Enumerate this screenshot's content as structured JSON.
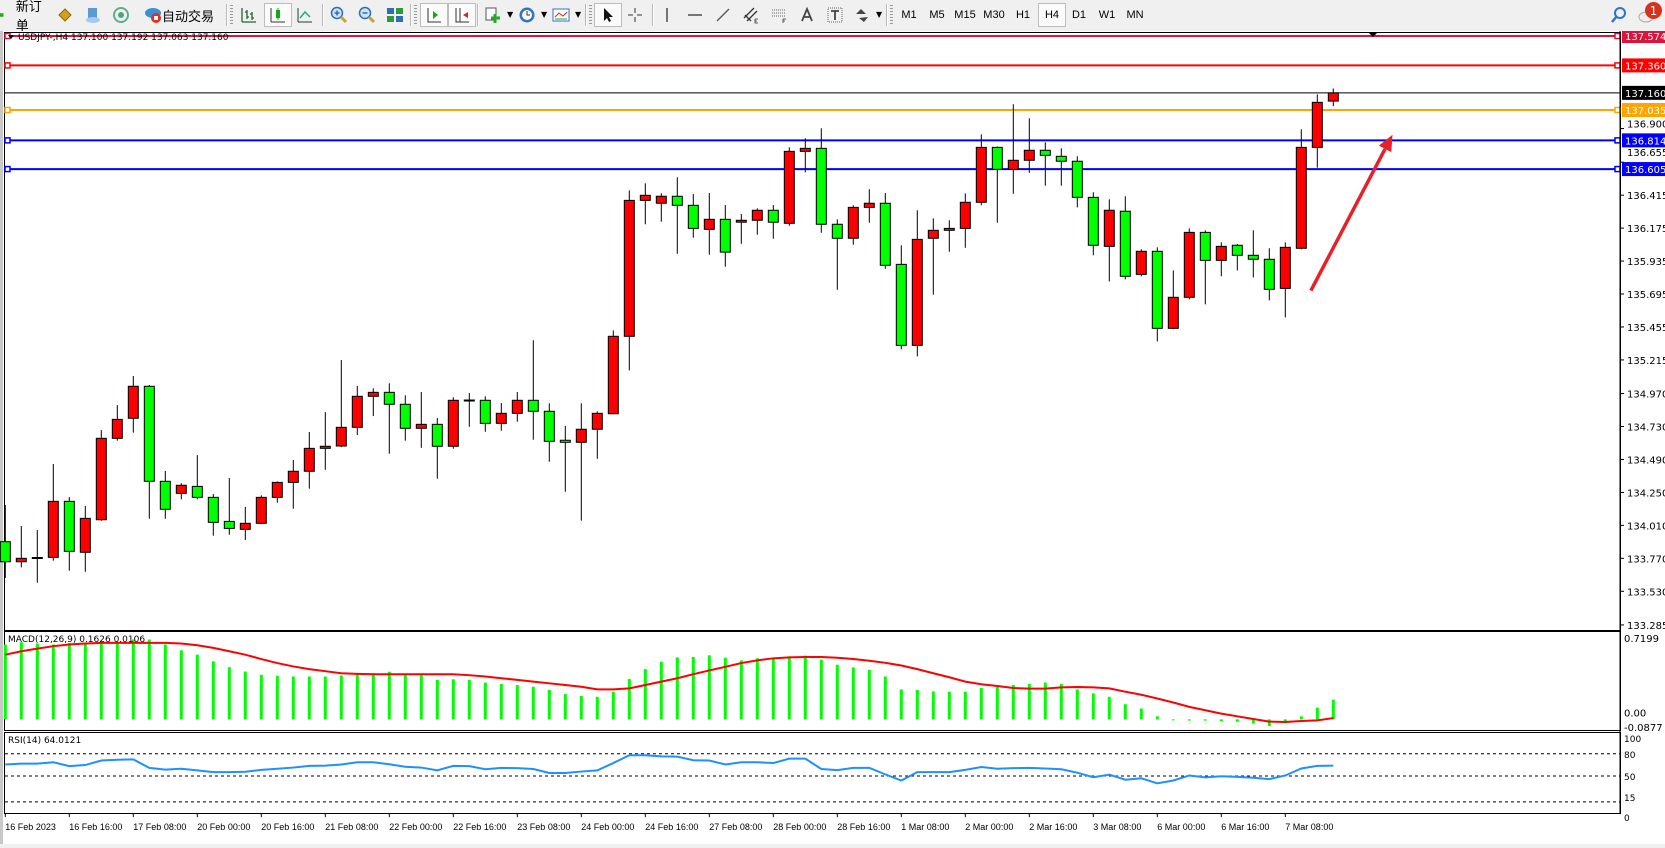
{
  "toolbar": {
    "new_order_label": "新订单",
    "auto_trading_label": "自动交易",
    "timeframes": [
      "M1",
      "M5",
      "M15",
      "M30",
      "H1",
      "H4",
      "D1",
      "W1",
      "MN"
    ],
    "active_timeframe": "H4",
    "notification_count": "1",
    "icons": [
      "new-order-icon",
      "history-center-icon",
      "navigator-icon",
      "signals-icon",
      "auto-trading-icon",
      "bar-chart-icon",
      "candlestick-icon",
      "line-chart-icon",
      "zoom-in-icon",
      "zoom-out-icon",
      "tile-windows-icon",
      "auto-scroll-icon",
      "chart-shift-icon",
      "indicators-icon",
      "periods-icon",
      "templates-icon",
      "cursor-icon",
      "crosshair-icon",
      "vertical-line-icon",
      "horizontal-line-icon",
      "trendline-icon",
      "equidistant-channel-icon",
      "fibonacci-icon",
      "text-icon",
      "text-label-icon",
      "arrows-icon",
      "search-icon",
      "chat-icon"
    ]
  },
  "chart": {
    "title": "USDJPY-,H4  137.100 137.192 137.063 137.160",
    "colors": {
      "bull": "#ff0000",
      "bear": "#00ff00",
      "outline": "#000000",
      "macd_hist": "#00ff00",
      "macd_signal": "#ff0000",
      "rsi": "#1e90ff",
      "arrow": "#e8202a"
    },
    "price_ticks": [
      "136.900",
      "136.655",
      "136.415",
      "136.175",
      "135.935",
      "135.695",
      "135.455",
      "135.215",
      "134.970",
      "134.730",
      "134.490",
      "134.250",
      "134.010",
      "133.770",
      "133.530",
      "133.285"
    ],
    "price_tick_values": [
      136.9,
      136.655,
      136.415,
      136.175,
      135.935,
      135.695,
      135.455,
      135.215,
      134.97,
      134.73,
      134.49,
      134.25,
      134.01,
      133.77,
      133.53,
      133.285
    ],
    "horizontal_lines": [
      {
        "price": 137.574,
        "label": "137.574",
        "color": "#dc143c"
      },
      {
        "price": 137.36,
        "label": "137.360",
        "color": "#ff0000"
      },
      {
        "price": 137.035,
        "label": "137.035",
        "color": "#ffa500"
      },
      {
        "price": 136.814,
        "label": "136.814",
        "color": "#0000ff"
      },
      {
        "price": 136.605,
        "label": "136.605",
        "color": "#0000ff"
      }
    ],
    "bid": {
      "price": 137.16,
      "label": "137.160",
      "color": "#000000"
    },
    "annotation_arrow": {
      "from_price": 135.72,
      "from_bar": 81.6,
      "to_price": 136.855,
      "to_bar": 86.7
    },
    "time_labels": [
      {
        "bar": 0,
        "label": "16 Feb 2023"
      },
      {
        "bar": 4,
        "label": "16 Feb 16:00"
      },
      {
        "bar": 8,
        "label": "17 Feb 08:00"
      },
      {
        "bar": 12,
        "label": "20 Feb 00:00"
      },
      {
        "bar": 16,
        "label": "20 Feb 16:00"
      },
      {
        "bar": 20,
        "label": "21 Feb 08:00"
      },
      {
        "bar": 24,
        "label": "22 Feb 00:00"
      },
      {
        "bar": 28,
        "label": "22 Feb 16:00"
      },
      {
        "bar": 32,
        "label": "23 Feb 08:00"
      },
      {
        "bar": 36,
        "label": "24 Feb 00:00"
      },
      {
        "bar": 40,
        "label": "24 Feb 16:00"
      },
      {
        "bar": 44,
        "label": "27 Feb 08:00"
      },
      {
        "bar": 48,
        "label": "28 Feb 00:00"
      },
      {
        "bar": 52,
        "label": "28 Feb 16:00"
      },
      {
        "bar": 56,
        "label": "1 Mar 08:00"
      },
      {
        "bar": 60,
        "label": "2 Mar 00:00"
      },
      {
        "bar": 64,
        "label": "2 Mar 16:00"
      },
      {
        "bar": 68,
        "label": "3 Mar 08:00"
      },
      {
        "bar": 72,
        "label": "6 Mar 00:00"
      },
      {
        "bar": 76,
        "label": "6 Mar 16:00"
      },
      {
        "bar": 80,
        "label": "7 Mar 08:00"
      }
    ]
  },
  "chart_data": {
    "type": "candlestick",
    "symbol": "USDJPY-",
    "timeframe": "H4",
    "ylim": [
      133.248,
      137.596
    ],
    "ohlc": [
      [
        133.891,
        134.158,
        133.627,
        133.745
      ],
      [
        133.745,
        134.005,
        133.704,
        133.77
      ],
      [
        133.772,
        133.976,
        133.592,
        133.776
      ],
      [
        133.777,
        134.457,
        133.753,
        134.185
      ],
      [
        134.185,
        134.216,
        133.68,
        133.821
      ],
      [
        133.814,
        134.151,
        133.672,
        134.061
      ],
      [
        134.051,
        134.704,
        134.044,
        134.644
      ],
      [
        134.644,
        134.886,
        134.627,
        134.782
      ],
      [
        134.79,
        135.098,
        134.685,
        135.023
      ],
      [
        135.023,
        135.032,
        134.058,
        134.331
      ],
      [
        134.331,
        134.406,
        134.058,
        134.127
      ],
      [
        134.243,
        134.317,
        134.2,
        134.302
      ],
      [
        134.294,
        134.522,
        134.2,
        134.214
      ],
      [
        134.214,
        134.238,
        133.935,
        134.032
      ],
      [
        134.039,
        134.355,
        133.942,
        133.988
      ],
      [
        133.981,
        134.144,
        133.903,
        134.025
      ],
      [
        134.025,
        134.229,
        134.021,
        134.214
      ],
      [
        134.214,
        134.33,
        134.175,
        134.323
      ],
      [
        134.323,
        134.486,
        134.131,
        134.404
      ],
      [
        134.404,
        134.69,
        134.277,
        134.571
      ],
      [
        134.571,
        134.835,
        134.415,
        134.586
      ],
      [
        134.588,
        135.214,
        134.58,
        134.724
      ],
      [
        134.724,
        135.025,
        134.668,
        134.95
      ],
      [
        134.95,
        135.008,
        134.806,
        134.979
      ],
      [
        134.979,
        135.045,
        134.532,
        134.892
      ],
      [
        134.892,
        134.957,
        134.627,
        134.717
      ],
      [
        134.717,
        134.981,
        134.575,
        134.746
      ],
      [
        134.746,
        134.792,
        134.35,
        134.586
      ],
      [
        134.586,
        134.943,
        134.568,
        134.921
      ],
      [
        134.919,
        134.974,
        134.728,
        134.923
      ],
      [
        134.921,
        134.95,
        134.692,
        134.753
      ],
      [
        134.753,
        134.901,
        134.699,
        134.826
      ],
      [
        134.826,
        134.981,
        134.765,
        134.921
      ],
      [
        134.921,
        135.358,
        134.634,
        134.841
      ],
      [
        134.841,
        134.899,
        134.474,
        134.622
      ],
      [
        134.63,
        134.734,
        134.255,
        134.615
      ],
      [
        134.615,
        134.899,
        134.044,
        134.71
      ],
      [
        134.71,
        134.84,
        134.495,
        134.826
      ],
      [
        134.823,
        135.43,
        134.82,
        135.387
      ],
      [
        135.387,
        136.45,
        135.139,
        136.377
      ],
      [
        136.377,
        136.501,
        136.203,
        136.414
      ],
      [
        136.356,
        136.428,
        136.222,
        136.407
      ],
      [
        136.407,
        136.545,
        135.988,
        136.341
      ],
      [
        136.341,
        136.423,
        136.105,
        136.173
      ],
      [
        136.166,
        136.431,
        135.981,
        136.239
      ],
      [
        136.239,
        136.343,
        135.894,
        136.0
      ],
      [
        136.218,
        136.278,
        136.061,
        136.232
      ],
      [
        136.232,
        136.319,
        136.127,
        136.305
      ],
      [
        136.305,
        136.343,
        136.098,
        136.218
      ],
      [
        136.21,
        136.763,
        136.192,
        136.734
      ],
      [
        136.734,
        136.829,
        136.581,
        136.756
      ],
      [
        136.756,
        136.902,
        136.141,
        136.203
      ],
      [
        136.203,
        136.239,
        135.726,
        136.101
      ],
      [
        136.101,
        136.341,
        136.054,
        136.326
      ],
      [
        136.326,
        136.458,
        136.214,
        136.356
      ],
      [
        136.356,
        136.431,
        135.879,
        135.904
      ],
      [
        135.911,
        136.05,
        135.292,
        135.321
      ],
      [
        135.321,
        136.305,
        135.241,
        136.093
      ],
      [
        136.101,
        136.246,
        135.69,
        136.159
      ],
      [
        136.159,
        136.232,
        136.003,
        136.173
      ],
      [
        136.173,
        136.428,
        136.032,
        136.363
      ],
      [
        136.363,
        136.858,
        136.341,
        136.763
      ],
      [
        136.763,
        136.77,
        136.214,
        136.603
      ],
      [
        136.603,
        137.077,
        136.425,
        136.669
      ],
      [
        136.669,
        136.975,
        136.578,
        136.742
      ],
      [
        136.742,
        136.8,
        136.484,
        136.705
      ],
      [
        136.698,
        136.756,
        136.484,
        136.662
      ],
      [
        136.662,
        136.698,
        136.326,
        136.399
      ],
      [
        136.399,
        136.436,
        135.977,
        136.05
      ],
      [
        136.042,
        136.385,
        135.787,
        136.305
      ],
      [
        136.298,
        136.407,
        135.802,
        135.824
      ],
      [
        135.838,
        136.021,
        135.824,
        136.006
      ],
      [
        136.006,
        136.035,
        135.35,
        135.445
      ],
      [
        135.445,
        135.867,
        135.438,
        135.671
      ],
      [
        135.671,
        136.173,
        135.656,
        136.144
      ],
      [
        136.144,
        136.159,
        135.62,
        135.94
      ],
      [
        135.94,
        136.071,
        135.824,
        136.042
      ],
      [
        136.05,
        136.06,
        135.867,
        135.977
      ],
      [
        135.977,
        136.159,
        135.816,
        135.948
      ],
      [
        135.948,
        136.028,
        135.649,
        135.729
      ],
      [
        135.736,
        136.071,
        135.525,
        136.035
      ],
      [
        136.028,
        136.895,
        136.02,
        136.763
      ],
      [
        136.763,
        137.149,
        136.615,
        137.091
      ],
      [
        137.1,
        137.192,
        137.063,
        137.16
      ]
    ],
    "macd": {
      "label": "MACD(12,26,9) 0.1626 0.0106",
      "ylim": [
        -0.0877,
        0.7199
      ],
      "axis_labels": [
        "0.7199",
        "0.00",
        "-0.0877"
      ],
      "histogram": [
        0.617,
        0.636,
        0.625,
        0.617,
        0.63,
        0.63,
        0.63,
        0.64,
        0.658,
        0.658,
        0.617,
        0.569,
        0.533,
        0.478,
        0.43,
        0.394,
        0.367,
        0.358,
        0.353,
        0.353,
        0.353,
        0.361,
        0.38,
        0.38,
        0.392,
        0.367,
        0.364,
        0.325,
        0.33,
        0.325,
        0.303,
        0.292,
        0.283,
        0.269,
        0.242,
        0.208,
        0.192,
        0.186,
        0.228,
        0.333,
        0.414,
        0.475,
        0.511,
        0.514,
        0.528,
        0.508,
        0.486,
        0.503,
        0.508,
        0.519,
        0.525,
        0.492,
        0.45,
        0.428,
        0.408,
        0.353,
        0.247,
        0.242,
        0.23,
        0.228,
        0.228,
        0.258,
        0.269,
        0.283,
        0.292,
        0.303,
        0.292,
        0.247,
        0.214,
        0.186,
        0.125,
        0.089,
        0.025,
        -0.005,
        -0.01,
        -0.01,
        -0.015,
        -0.02,
        -0.035,
        -0.055,
        -0.03,
        0.025,
        0.097,
        0.1626
      ],
      "signal": [
        0.533,
        0.561,
        0.583,
        0.603,
        0.617,
        0.625,
        0.63,
        0.63,
        0.63,
        0.63,
        0.63,
        0.625,
        0.611,
        0.589,
        0.561,
        0.533,
        0.497,
        0.464,
        0.436,
        0.414,
        0.397,
        0.38,
        0.375,
        0.372,
        0.372,
        0.372,
        0.372,
        0.372,
        0.372,
        0.364,
        0.353,
        0.339,
        0.325,
        0.311,
        0.297,
        0.283,
        0.269,
        0.247,
        0.247,
        0.255,
        0.283,
        0.311,
        0.339,
        0.372,
        0.403,
        0.433,
        0.464,
        0.486,
        0.503,
        0.511,
        0.514,
        0.514,
        0.508,
        0.497,
        0.483,
        0.466,
        0.444,
        0.414,
        0.38,
        0.347,
        0.311,
        0.289,
        0.275,
        0.258,
        0.253,
        0.253,
        0.264,
        0.267,
        0.264,
        0.255,
        0.228,
        0.203,
        0.172,
        0.139,
        0.103,
        0.075,
        0.047,
        0.025,
        0.003,
        -0.019,
        -0.022,
        -0.014,
        -0.008,
        0.0106
      ]
    },
    "rsi": {
      "label": "RSI(14) 64.0121",
      "ylim": [
        0,
        100
      ],
      "levels": [
        80,
        50,
        15
      ],
      "axis_labels": [
        "100",
        "80",
        "50",
        "15",
        "0"
      ],
      "values": [
        65.5,
        66.7,
        66.7,
        68.6,
        63.3,
        64.8,
        70.9,
        72.0,
        72.4,
        61.0,
        58.7,
        59.8,
        57.6,
        55.3,
        55.3,
        55.7,
        58.3,
        59.8,
        61.4,
        63.7,
        64.0,
        65.5,
        68.6,
        68.6,
        65.9,
        62.5,
        61.4,
        57.6,
        63.7,
        63.3,
        59.1,
        61.0,
        60.6,
        59.5,
        54.1,
        54.1,
        56.0,
        57.6,
        67.5,
        78.1,
        78.1,
        76.6,
        76.2,
        71.3,
        70.9,
        65.5,
        68.6,
        68.6,
        67.5,
        73.5,
        73.5,
        59.5,
        57.9,
        61.0,
        61.0,
        52.2,
        43.9,
        55.3,
        55.3,
        55.3,
        58.3,
        62.1,
        59.8,
        60.6,
        61.0,
        60.2,
        59.1,
        54.5,
        48.4,
        51.9,
        45.0,
        46.9,
        40.1,
        43.9,
        50.7,
        48.1,
        49.6,
        48.8,
        47.7,
        45.8,
        50.7,
        60.2,
        63.7,
        64.0121
      ]
    }
  }
}
